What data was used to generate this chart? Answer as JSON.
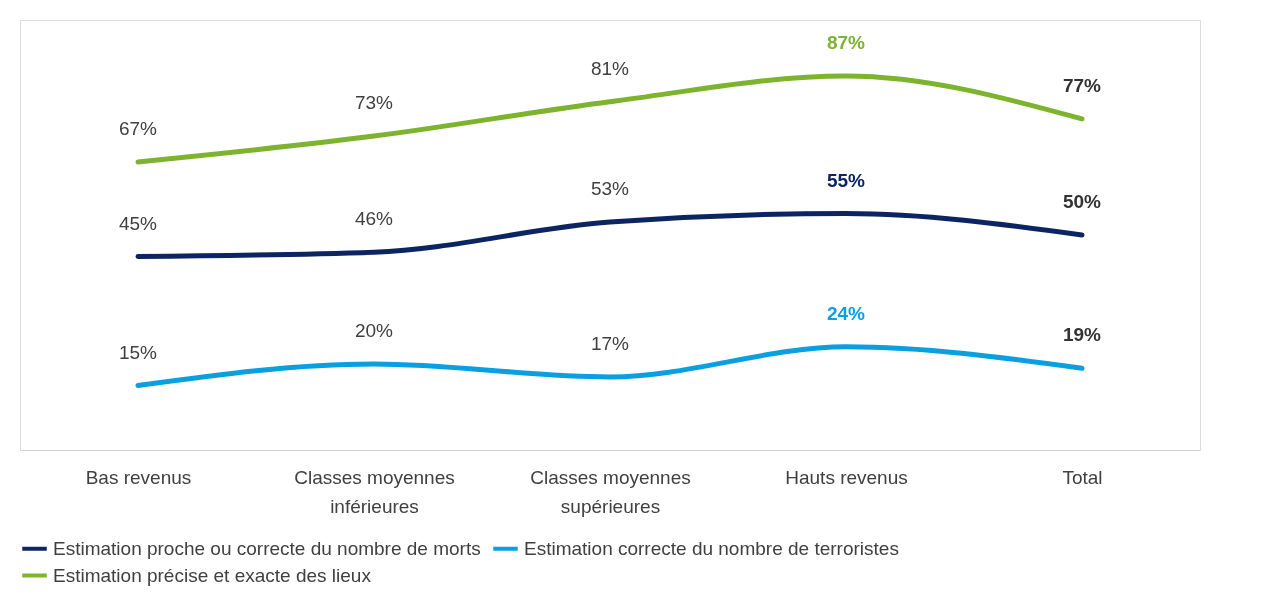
{
  "chart_data": {
    "type": "line",
    "categories": [
      "Bas revenus",
      "Classes moyennes inférieures",
      "Classes moyennes supérieures",
      "Hauts revenus",
      "Total"
    ],
    "series": [
      {
        "name": "Estimation proche ou correcte du nombre de morts",
        "color": "#0c2461",
        "values": [
          45,
          46,
          53,
          55,
          50
        ],
        "value_labels": [
          "45%",
          "46%",
          "53%",
          "55%",
          "50%"
        ]
      },
      {
        "name": "Estimation correcte du nombre de terroristes",
        "color": "#0aa0e0",
        "values": [
          15,
          20,
          17,
          24,
          19
        ],
        "value_labels": [
          "15%",
          "20%",
          "17%",
          "24%",
          "19%"
        ]
      },
      {
        "name": "Estimation précise et exacte des lieux",
        "color": "#7db32e",
        "values": [
          67,
          73,
          81,
          87,
          77
        ],
        "value_labels": [
          "67%",
          "73%",
          "81%",
          "87%",
          "77%"
        ]
      }
    ],
    "ylim": [
      0,
      100
    ],
    "tick_labels": "x",
    "grid": false,
    "legend": "bottom",
    "marker": "none",
    "line_style": "solid"
  }
}
